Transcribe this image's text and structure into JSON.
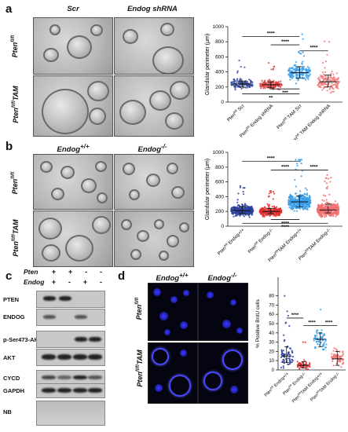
{
  "panels": {
    "a": {
      "label": "a",
      "col_headers": [
        "Scr",
        "Endog shRNA"
      ],
      "row_labels": [
        {
          "main": "Pten",
          "sup": "fl/fl",
          "tail": ""
        },
        {
          "main": "Pten",
          "sup": "fl/fl",
          "tail": "TAM"
        }
      ]
    },
    "b": {
      "label": "b",
      "col_headers": [
        {
          "main": "Endog",
          "sup": "+/+"
        },
        {
          "main": "Endog",
          "sup": "-/-"
        }
      ],
      "row_labels": [
        {
          "main": "Pten",
          "sup": "fl/fl",
          "tail": ""
        },
        {
          "main": "Pten",
          "sup": "fl/fl",
          "tail": "TAM"
        }
      ]
    },
    "c": {
      "label": "c",
      "genotype_rows": [
        {
          "name": "Pten",
          "signs": [
            "+",
            "+",
            "-",
            "-"
          ]
        },
        {
          "name": "Endog",
          "signs": [
            "+",
            "-",
            "+",
            "-"
          ]
        }
      ],
      "blots": [
        "PTEN",
        "ENDOG",
        "p-Ser473-AKT",
        "AKT",
        "CYCD",
        "GAPDH",
        "NB"
      ]
    },
    "d": {
      "label": "d",
      "col_headers": [
        {
          "main": "Endog",
          "sup": "+/+"
        },
        {
          "main": "Endog",
          "sup": "-/-"
        }
      ],
      "row_labels": [
        {
          "main": "Pten",
          "sup": "fl/fl",
          "tail": ""
        },
        {
          "main": "Pten",
          "sup": "fl/fl",
          "tail": "TAM"
        }
      ]
    }
  },
  "chart_data": [
    {
      "id": "chart-a",
      "type": "scatter",
      "ylabel": "Glandular perimeter (μm)",
      "ylim": [
        0,
        1000
      ],
      "yticks": [
        0,
        200,
        400,
        600,
        800,
        1000
      ],
      "categories": [
        {
          "main": "Pten",
          "sup": "fl/fl",
          "tail": " Scr"
        },
        {
          "main": "Pten",
          "sup": "fl/fl",
          "tail": " Endog shRNA"
        },
        {
          "main": "Pten",
          "sup": "fl/fl",
          "tail": " TAM Scr"
        },
        {
          "main": "Pten",
          "sup": "fl/fl",
          "tail": " TAM Endog shRNA"
        }
      ],
      "series": [
        {
          "color": "#3b4fa0",
          "median": 240,
          "q1": 200,
          "q3": 280,
          "n": 140
        },
        {
          "color": "#e04040",
          "median": 230,
          "q1": 190,
          "q3": 270,
          "n": 140
        },
        {
          "color": "#3a9ee8",
          "median": 390,
          "q1": 320,
          "q3": 470,
          "n": 160
        },
        {
          "color": "#f07878",
          "median": 270,
          "q1": 200,
          "q3": 360,
          "n": 140
        }
      ],
      "brackets": [
        {
          "from": 0,
          "to": 2,
          "label": "****",
          "level": 870,
          "below": false
        },
        {
          "from": 1,
          "to": 2,
          "label": "****",
          "level": 760,
          "below": false
        },
        {
          "from": 2,
          "to": 3,
          "label": "****",
          "level": 680,
          "below": false
        },
        {
          "from": 1,
          "to": 2,
          "label": "***",
          "level": 175,
          "below": true
        },
        {
          "from": 0,
          "to": 2,
          "label": "**",
          "level": 110,
          "below": true
        }
      ]
    },
    {
      "id": "chart-b",
      "type": "scatter",
      "ylabel": "Glandular perimeter (μm)",
      "ylim": [
        0,
        1000
      ],
      "yticks": [
        0,
        200,
        400,
        600,
        800,
        1000
      ],
      "categories": [
        {
          "main": "Pten",
          "sup": "fl/fl",
          "tail": " Endog+/+"
        },
        {
          "main": "Pten",
          "sup": "fl/fl",
          "tail": " Endog-/-"
        },
        {
          "main": "Pten",
          "sup": "fl/fl",
          "tail": "TAM Endog+/+"
        },
        {
          "main": "Pten",
          "sup": "fl/fl",
          "tail": "TAM Endog-/-"
        }
      ],
      "series": [
        {
          "color": "#2b3f9a",
          "median": 210,
          "q1": 170,
          "q3": 260,
          "n": 320
        },
        {
          "color": "#e03030",
          "median": 200,
          "q1": 170,
          "q3": 240,
          "n": 320
        },
        {
          "color": "#3a9ee8",
          "median": 330,
          "q1": 260,
          "q3": 410,
          "n": 380
        },
        {
          "color": "#f07070",
          "median": 220,
          "q1": 180,
          "q3": 300,
          "n": 340
        }
      ],
      "brackets": [
        {
          "from": 0,
          "to": 2,
          "label": "****",
          "level": 880,
          "below": false
        },
        {
          "from": 1,
          "to": 2,
          "label": "****",
          "level": 760,
          "below": false
        },
        {
          "from": 2,
          "to": 3,
          "label": "****",
          "level": 760,
          "below": false
        },
        {
          "from": 1,
          "to": 2,
          "label": "****",
          "level": 90,
          "below": true
        },
        {
          "from": 0,
          "to": 3,
          "label": "****",
          "level": 40,
          "below": true
        }
      ]
    },
    {
      "id": "chart-d",
      "type": "scatter",
      "ylabel": "% Positive BrdU cells",
      "ylim": [
        0,
        100
      ],
      "yticks": [
        0,
        10,
        20,
        30,
        40,
        50,
        60,
        70,
        80
      ],
      "categories": [
        {
          "main": "Pten",
          "sup": "fl/fl",
          "tail": " Endog+/+"
        },
        {
          "main": "Pten",
          "sup": "fl/fl",
          "tail": " Endog-/-"
        },
        {
          "main": "Pten",
          "sup": "fl/fl",
          "tail": "TAM Endog+/+"
        },
        {
          "main": "Pten",
          "sup": "fl/fl",
          "tail": "TAM Endog-/-"
        }
      ],
      "series": [
        {
          "color": "#2b3f9a",
          "median": 15,
          "q1": 8,
          "q3": 25,
          "n": 70
        },
        {
          "color": "#e03030",
          "median": 5,
          "q1": 2,
          "q3": 9,
          "n": 60
        },
        {
          "color": "#3a9ee8",
          "median": 33,
          "q1": 25,
          "q3": 40,
          "n": 60
        },
        {
          "color": "#f07070",
          "median": 12,
          "q1": 5,
          "q3": 20,
          "n": 60
        }
      ],
      "brackets": [
        {
          "from": 0,
          "to": 1,
          "label": "****",
          "level": 56,
          "below": false
        },
        {
          "from": 1,
          "to": 2,
          "label": "****",
          "level": 48,
          "below": false
        },
        {
          "from": 2,
          "to": 3,
          "label": "****",
          "level": 48,
          "below": false
        }
      ]
    }
  ]
}
